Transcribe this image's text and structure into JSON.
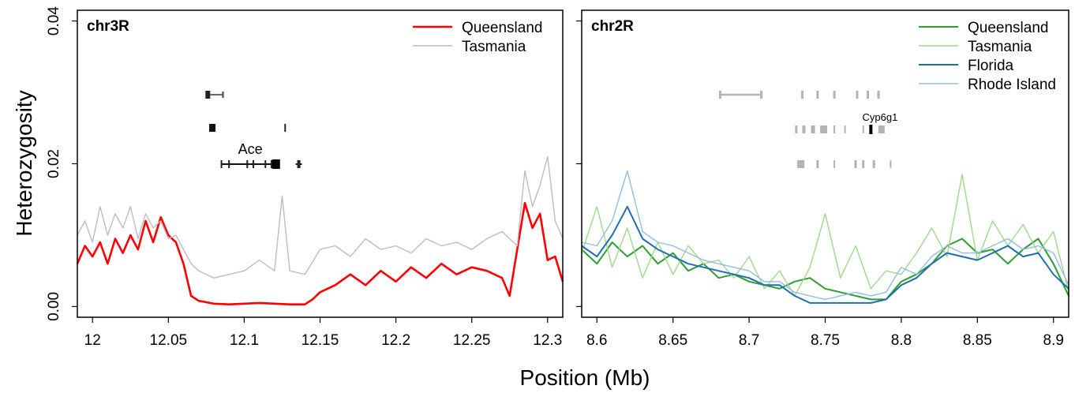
{
  "figure": {
    "ylabel": "Heterozygosity",
    "xlabel": "Position (Mb)"
  },
  "chart_data": [
    {
      "type": "line",
      "title": "chr3R",
      "xlabel": "Position (Mb)",
      "ylabel": "Heterozygosity",
      "xlim": [
        11.99,
        12.31
      ],
      "ylim": [
        -0.0015,
        0.0415
      ],
      "xticks": [
        12,
        12.05,
        12.1,
        12.15,
        12.2,
        12.25,
        12.3
      ],
      "xtick_labels": [
        "12",
        "12.05",
        "12.1",
        "12.15",
        "12.2",
        "12.25",
        "12.3"
      ],
      "yticks": [
        0.0,
        0.02,
        0.04
      ],
      "ytick_labels": [
        "0.00",
        "0.02",
        "0.04"
      ],
      "grid": false,
      "legend_position": "top-right",
      "series": [
        {
          "name": "Queensland",
          "color": "#ff0000",
          "width": 2.6,
          "x": [
            11.99,
            11.995,
            12.0,
            12.005,
            12.01,
            12.015,
            12.02,
            12.025,
            12.03,
            12.035,
            12.04,
            12.045,
            12.05,
            12.055,
            12.06,
            12.065,
            12.07,
            12.08,
            12.09,
            12.1,
            12.11,
            12.12,
            12.13,
            12.14,
            12.145,
            12.15,
            12.16,
            12.17,
            12.18,
            12.19,
            12.2,
            12.21,
            12.22,
            12.23,
            12.24,
            12.25,
            12.26,
            12.27,
            12.275,
            12.28,
            12.285,
            12.29,
            12.295,
            12.3,
            12.305,
            12.31
          ],
          "y": [
            0.006,
            0.0085,
            0.007,
            0.009,
            0.006,
            0.0095,
            0.0075,
            0.01,
            0.008,
            0.012,
            0.009,
            0.0125,
            0.01,
            0.009,
            0.006,
            0.0015,
            0.0008,
            0.0004,
            0.0003,
            0.0004,
            0.0005,
            0.0004,
            0.0003,
            0.0003,
            0.001,
            0.002,
            0.003,
            0.0045,
            0.003,
            0.005,
            0.0035,
            0.0055,
            0.004,
            0.006,
            0.0045,
            0.0055,
            0.005,
            0.004,
            0.0015,
            0.008,
            0.0145,
            0.011,
            0.013,
            0.0065,
            0.007,
            0.0035
          ]
        },
        {
          "name": "Tasmania",
          "color": "#bdbdbd",
          "width": 1.4,
          "x": [
            11.99,
            11.995,
            12.0,
            12.005,
            12.01,
            12.015,
            12.02,
            12.025,
            12.03,
            12.035,
            12.04,
            12.045,
            12.05,
            12.055,
            12.06,
            12.065,
            12.07,
            12.08,
            12.09,
            12.1,
            12.11,
            12.12,
            12.125,
            12.13,
            12.14,
            12.15,
            12.16,
            12.17,
            12.18,
            12.19,
            12.2,
            12.21,
            12.22,
            12.23,
            12.24,
            12.25,
            12.26,
            12.27,
            12.28,
            12.285,
            12.29,
            12.295,
            12.3,
            12.305,
            12.31
          ],
          "y": [
            0.01,
            0.012,
            0.009,
            0.014,
            0.01,
            0.013,
            0.011,
            0.014,
            0.0095,
            0.013,
            0.011,
            0.012,
            0.0095,
            0.01,
            0.008,
            0.006,
            0.005,
            0.004,
            0.0045,
            0.005,
            0.0065,
            0.005,
            0.0155,
            0.005,
            0.0045,
            0.008,
            0.0085,
            0.007,
            0.0095,
            0.008,
            0.0085,
            0.0075,
            0.0095,
            0.0085,
            0.009,
            0.008,
            0.0095,
            0.0105,
            0.0085,
            0.019,
            0.014,
            0.017,
            0.021,
            0.012,
            0.0095
          ]
        }
      ],
      "annotations": [
        {
          "text": "Ace"
        }
      ]
    },
    {
      "type": "line",
      "title": "chr2R",
      "xlabel": "Position (Mb)",
      "ylabel": "Heterozygosity",
      "xlim": [
        8.59,
        8.91
      ],
      "ylim": [
        -0.0015,
        0.0415
      ],
      "xticks": [
        8.6,
        8.65,
        8.7,
        8.75,
        8.8,
        8.85,
        8.9
      ],
      "xtick_labels": [
        "8.6",
        "8.65",
        "8.7",
        "8.75",
        "8.8",
        "8.85",
        "8.9"
      ],
      "yticks": [
        0.0,
        0.02,
        0.04
      ],
      "grid": false,
      "legend_position": "top-right",
      "series": [
        {
          "name": "Queensland",
          "color": "#2ca02c",
          "width": 2.0,
          "x": [
            8.59,
            8.6,
            8.61,
            8.62,
            8.63,
            8.64,
            8.65,
            8.66,
            8.67,
            8.68,
            8.69,
            8.7,
            8.71,
            8.72,
            8.73,
            8.74,
            8.75,
            8.76,
            8.77,
            8.78,
            8.79,
            8.8,
            8.81,
            8.82,
            8.83,
            8.84,
            8.85,
            8.86,
            8.87,
            8.88,
            8.89,
            8.9,
            8.91
          ],
          "y": [
            0.008,
            0.006,
            0.009,
            0.007,
            0.0085,
            0.006,
            0.0075,
            0.005,
            0.006,
            0.004,
            0.0045,
            0.0035,
            0.003,
            0.0025,
            0.0035,
            0.004,
            0.0025,
            0.002,
            0.0015,
            0.001,
            0.001,
            0.0035,
            0.0045,
            0.006,
            0.0085,
            0.0095,
            0.0075,
            0.008,
            0.006,
            0.008,
            0.0095,
            0.006,
            0.0015
          ]
        },
        {
          "name": "Tasmania",
          "color": "#9ed98a",
          "width": 1.4,
          "x": [
            8.59,
            8.6,
            8.61,
            8.62,
            8.63,
            8.64,
            8.65,
            8.66,
            8.67,
            8.68,
            8.69,
            8.7,
            8.71,
            8.72,
            8.73,
            8.74,
            8.75,
            8.76,
            8.77,
            8.78,
            8.79,
            8.8,
            8.81,
            8.82,
            8.83,
            8.84,
            8.85,
            8.86,
            8.87,
            8.88,
            8.89,
            8.9,
            8.91
          ],
          "y": [
            0.0075,
            0.014,
            0.0055,
            0.011,
            0.004,
            0.009,
            0.0045,
            0.0085,
            0.006,
            0.0065,
            0.004,
            0.007,
            0.0025,
            0.005,
            0.0015,
            0.0055,
            0.013,
            0.004,
            0.0085,
            0.0025,
            0.005,
            0.0045,
            0.0075,
            0.011,
            0.007,
            0.0185,
            0.0065,
            0.012,
            0.0085,
            0.0115,
            0.0075,
            0.0105,
            0.002
          ]
        },
        {
          "name": "Florida",
          "color": "#1f6db3",
          "width": 2.0,
          "x": [
            8.59,
            8.6,
            8.61,
            8.62,
            8.63,
            8.64,
            8.65,
            8.66,
            8.67,
            8.68,
            8.69,
            8.7,
            8.71,
            8.72,
            8.73,
            8.74,
            8.75,
            8.76,
            8.77,
            8.78,
            8.79,
            8.8,
            8.81,
            8.82,
            8.83,
            8.84,
            8.85,
            8.86,
            8.87,
            8.88,
            8.89,
            8.9,
            8.91
          ],
          "y": [
            0.0085,
            0.007,
            0.01,
            0.014,
            0.0095,
            0.008,
            0.007,
            0.006,
            0.0055,
            0.005,
            0.0045,
            0.004,
            0.003,
            0.003,
            0.0015,
            0.0005,
            0.0005,
            0.0005,
            0.0005,
            0.0005,
            0.001,
            0.003,
            0.004,
            0.006,
            0.0075,
            0.007,
            0.0065,
            0.0075,
            0.0085,
            0.007,
            0.0075,
            0.0045,
            0.0025
          ]
        },
        {
          "name": "Rhode Island",
          "color": "#8fbde6",
          "width": 1.4,
          "x": [
            8.59,
            8.6,
            8.61,
            8.62,
            8.63,
            8.64,
            8.65,
            8.66,
            8.67,
            8.68,
            8.69,
            8.7,
            8.71,
            8.72,
            8.73,
            8.74,
            8.75,
            8.76,
            8.77,
            8.78,
            8.79,
            8.8,
            8.81,
            8.82,
            8.83,
            8.84,
            8.85,
            8.86,
            8.87,
            8.88,
            8.89,
            8.9,
            8.91
          ],
          "y": [
            0.009,
            0.0085,
            0.012,
            0.019,
            0.0105,
            0.009,
            0.0085,
            0.0075,
            0.0065,
            0.006,
            0.0055,
            0.005,
            0.0035,
            0.0035,
            0.002,
            0.0015,
            0.001,
            0.0015,
            0.002,
            0.0015,
            0.002,
            0.0055,
            0.0045,
            0.007,
            0.0085,
            0.0075,
            0.0075,
            0.0085,
            0.0095,
            0.008,
            0.0085,
            0.0075,
            0.003
          ]
        }
      ],
      "annotations": [
        {
          "text": "Cyp6g1"
        }
      ]
    }
  ]
}
